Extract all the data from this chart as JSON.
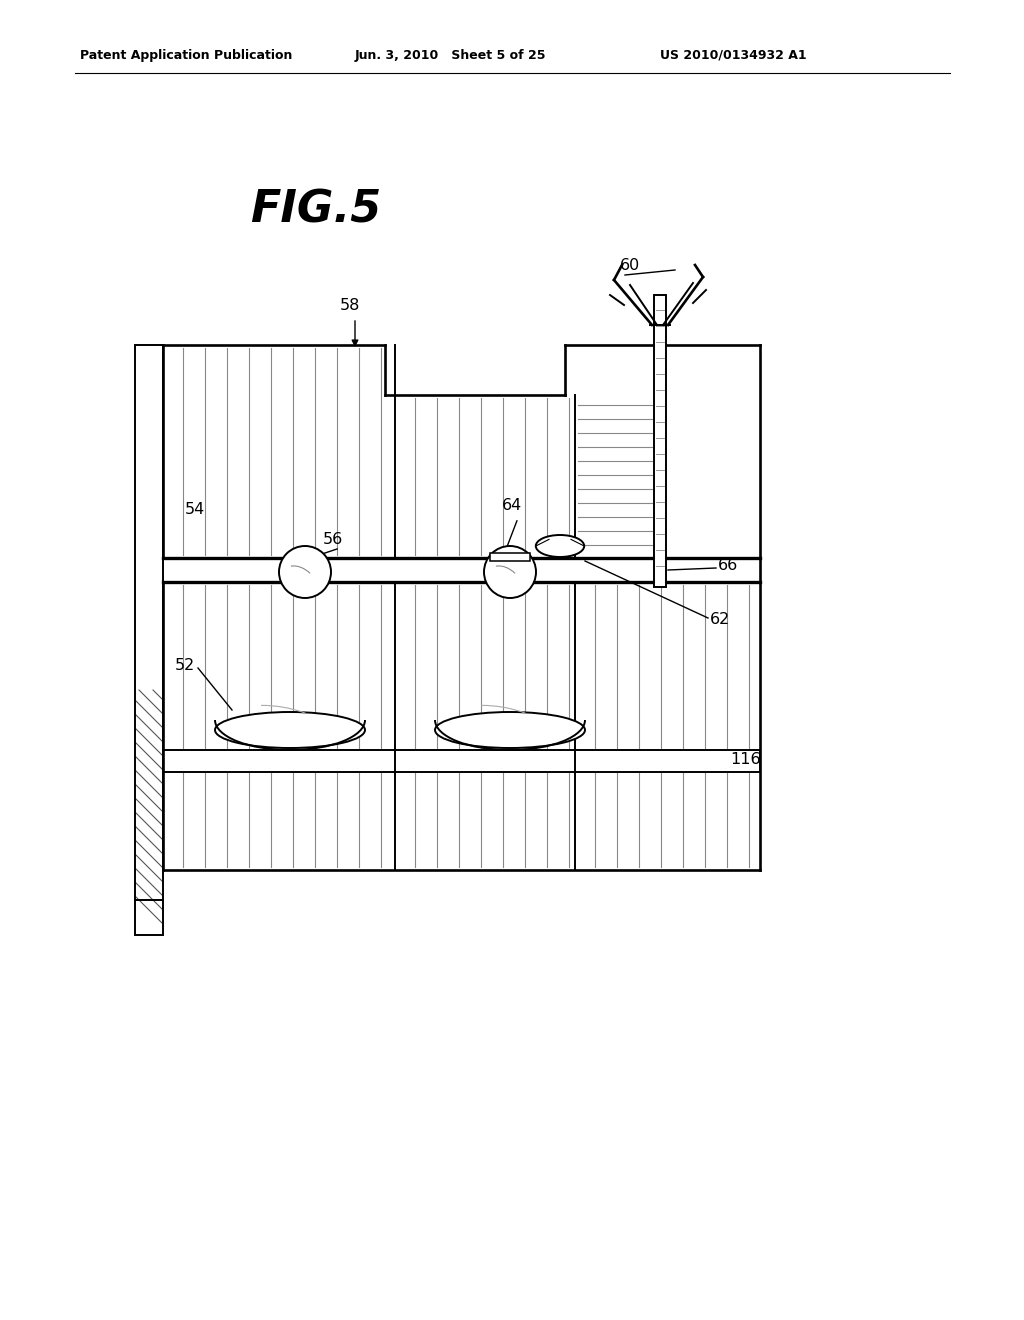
{
  "title": "FIG.5",
  "header_left": "Patent Application Publication",
  "header_mid": "Jun. 3, 2010   Sheet 5 of 25",
  "header_right": "US 2010/0134932 A1",
  "bg_color": "#ffffff",
  "line_color": "#000000",
  "fig_width": 10.24,
  "fig_height": 13.2,
  "dpi": 100
}
